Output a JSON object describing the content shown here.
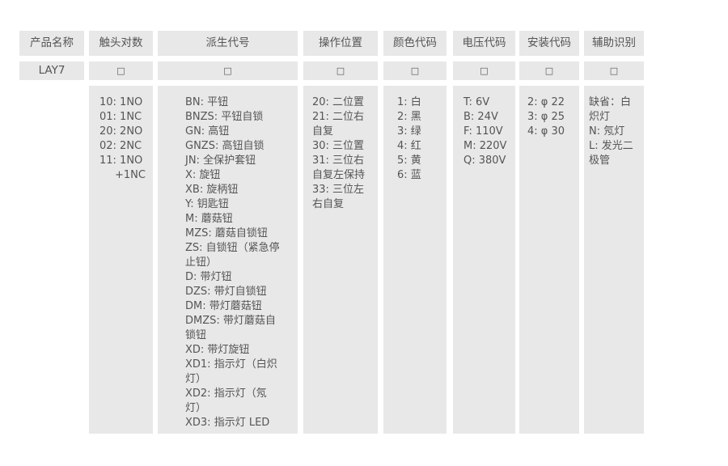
{
  "headers": [
    "产品名称",
    "触头对数",
    "派生代号",
    "操作位置",
    "颜色代码",
    "电压代码",
    "安装代码",
    "辅助识别"
  ],
  "row2": [
    "LAY7",
    "□",
    "□",
    "□",
    "□",
    "□",
    "□",
    "□"
  ],
  "contacts": [
    "10: 1NO",
    "01: 1NC",
    "20: 2NO",
    "02: 2NC",
    "11: 1NO",
    "+1NC"
  ],
  "derivatives": [
    "BN: 平钮",
    "BNZS: 平钮自锁",
    "GN: 高钮",
    "GNZS: 高钮自锁",
    "JN: 全保护套钮",
    "X: 旋钮",
    "XB: 旋柄钮",
    "Y: 钥匙钮",
    "M: 蘑菇钮",
    "MZS: 蘑菇自锁钮",
    "ZS: 自锁钮（紧急停止钮）",
    "D: 带灯钮",
    "DZS: 带灯自锁钮",
    "DM: 带灯蘑菇钮",
    "DMZS: 带灯蘑菇自锁钮",
    "XD: 带灯旋钮",
    "XD1: 指示灯（白炽灯）",
    "XD2: 指示灯（氖灯）",
    "XD3: 指示灯 LED"
  ],
  "positions": [
    "20: 二位置",
    "21: 二位右自复",
    "30: 三位置",
    "31: 三位右自复左保持",
    "33: 三位左右自复"
  ],
  "colors": [
    "1: 白",
    "2: 黑",
    "3: 绿",
    "4: 红",
    "5: 黄",
    "6: 蓝"
  ],
  "voltages": [
    "T: 6V",
    "B: 24V",
    "F: 110V",
    "M: 220V",
    "Q: 380V"
  ],
  "mounting": [
    "2: φ 22",
    "3: φ 25",
    "4: φ 30"
  ],
  "auxiliary": [
    "缺省：白炽灯",
    "N: 氖灯",
    "L: 发光二极管"
  ]
}
